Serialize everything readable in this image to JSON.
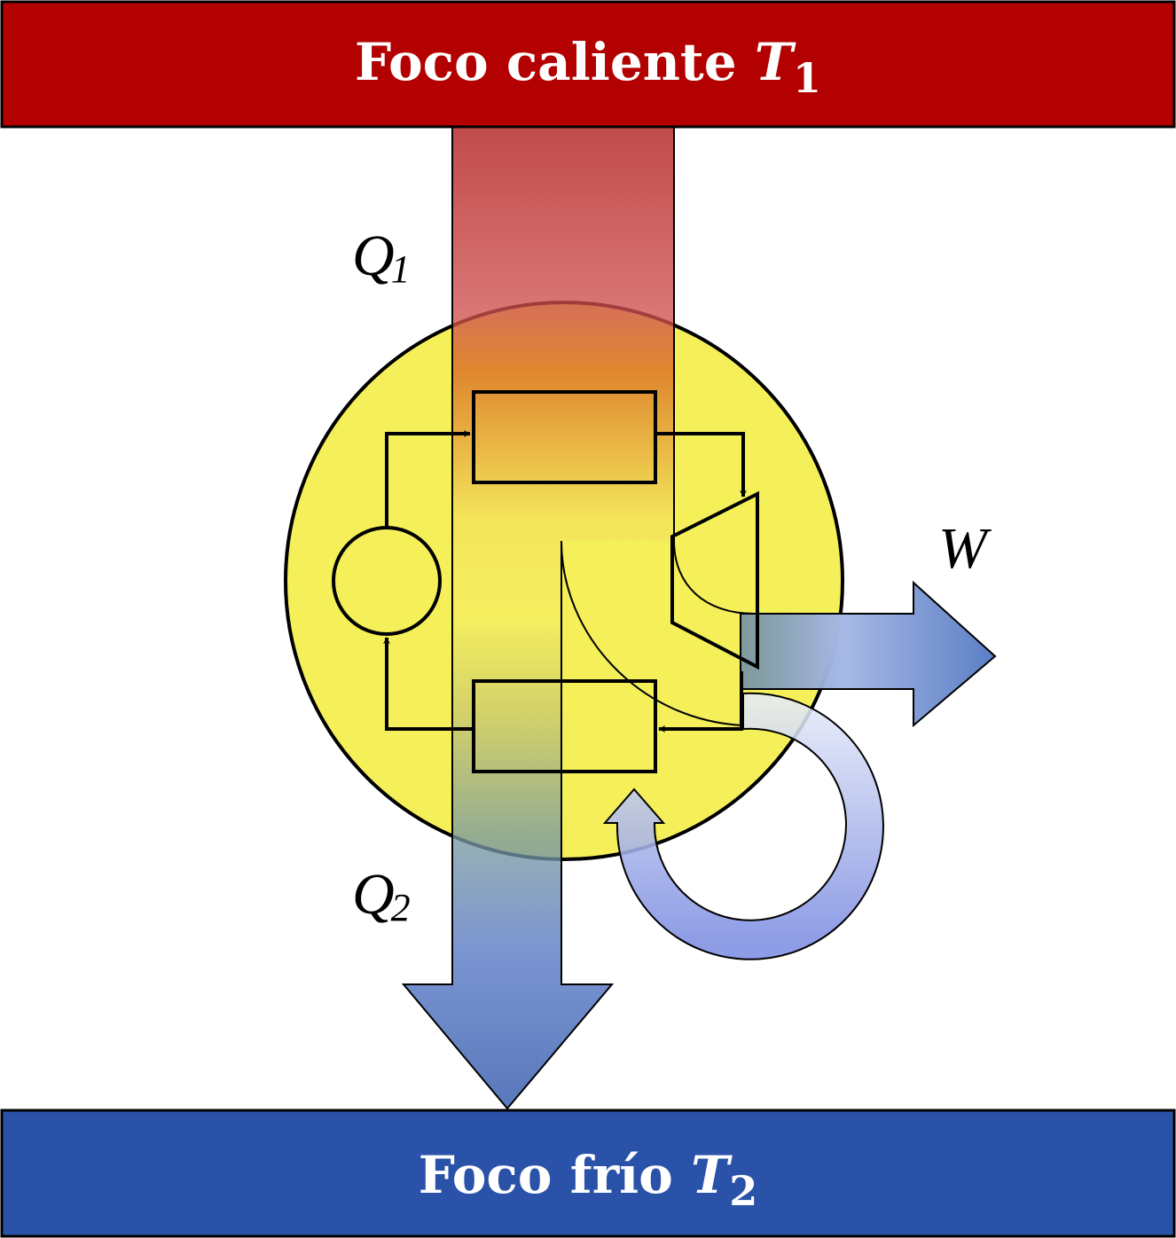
{
  "hot_reservoir": {
    "label": "Foco caliente",
    "symbol": "T",
    "subscript": "1",
    "color": "#b30000"
  },
  "cold_reservoir": {
    "label": "Foco frío",
    "symbol": "T",
    "subscript": "2",
    "color": "#2a52a8"
  },
  "flows": {
    "q1": {
      "symbol": "Q",
      "subscript": "1"
    },
    "q2": {
      "symbol": "Q",
      "subscript": "2"
    },
    "w": {
      "symbol": "W"
    }
  },
  "colors": {
    "engine_fill": "#f5ef5a",
    "heat_in_top": "#b01818",
    "heat_out": "#2a52a8",
    "work": "#5a7ec4",
    "recycle": "#8a9be6"
  }
}
